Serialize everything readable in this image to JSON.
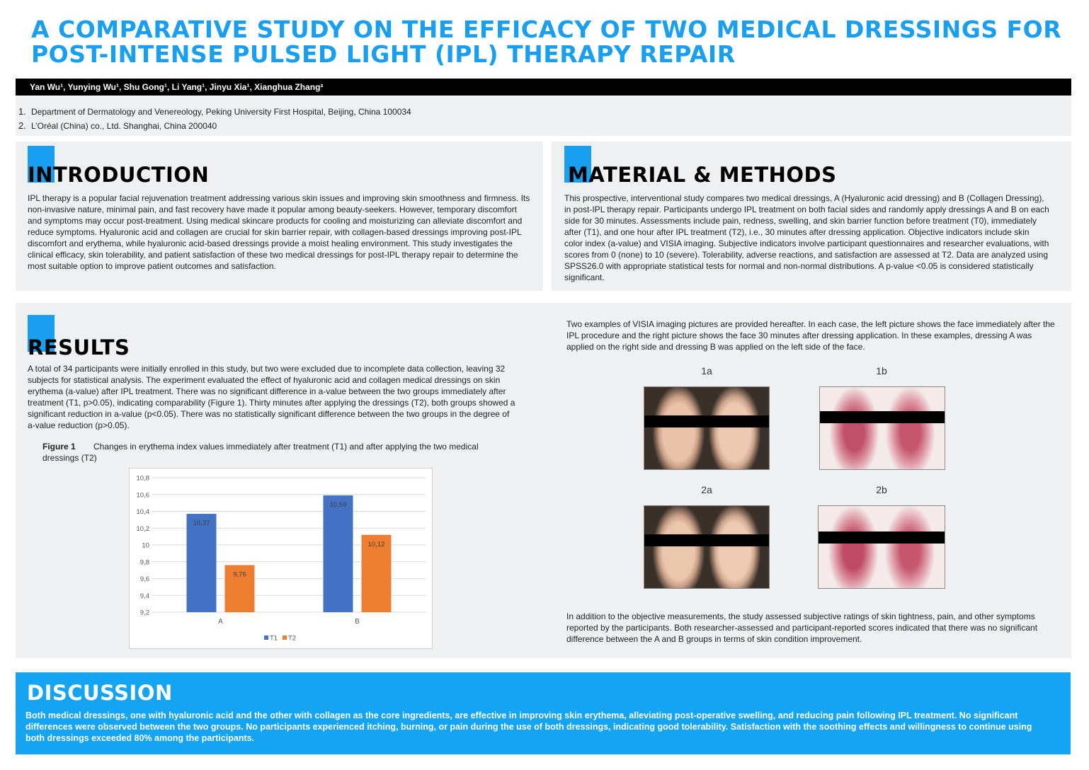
{
  "title": {
    "line1": "A COMPARATIVE STUDY ON THE EFFICACY OF TWO MEDICAL DRESSINGS FOR",
    "line2": "POST-INTENSE PULSED LIGHT (IPL) THERAPY REPAIR"
  },
  "authors": "Yan Wu¹, Yunying Wu¹, Shu Gong¹, Li Yang¹, Jinyu Xia¹, Xianghua Zhang²",
  "affiliations": [
    {
      "num": "1.",
      "text": "Department of Dermatology and Venereology, Peking University First Hospital, Beijing, China 100034"
    },
    {
      "num": "2.",
      "text": "L’Oréal (China) co., Ltd. Shanghai, China 200040"
    }
  ],
  "introduction": {
    "title": "INTRODUCTION",
    "text": "IPL therapy is a popular facial rejuvenation treatment addressing various skin issues and improving skin smoothness and firmness. Its non-invasive nature, minimal pain, and fast recovery have made it popular among beauty-seekers. However, temporary discomfort and symptoms may occur post-treatment. Using medical skincare products for cooling and moisturizing can alleviate discomfort and reduce symptoms. Hyaluronic acid and collagen are crucial for skin barrier repair, with collagen-based dressings improving post-IPL discomfort and erythema, while hyaluronic acid-based dressings provide a moist healing environment. This study investigates the clinical efficacy, skin tolerability, and patient satisfaction of these two medical dressings for post-IPL therapy repair to determine the most suitable option to improve patient outcomes and satisfaction."
  },
  "methods": {
    "title": "MATERIAL & METHODS",
    "text": "This prospective, interventional study compares two medical dressings, A (Hyaluronic acid dressing) and B (Collagen Dressing), in post-IPL therapy repair. Participants undergo IPL treatment on both facial sides and randomly apply dressings A and B on each side for 30 minutes. Assessments include pain, redness, swelling, and skin barrier function before treatment (T0), immediately after (T1), and one hour after IPL treatment (T2), i.e., 30 minutes after dressing application. Objective indicators include skin color index (a-value) and VISIA imaging. Subjective indicators involve participant questionnaires and researcher evaluations, with scores from 0 (none) to 10 (severe). Tolerability, adverse reactions, and satisfaction are assessed at T2. Data are analyzed using SPSS26.0 with appropriate statistical tests for normal and non-normal distributions. A p-value <0.05 is considered statistically significant."
  },
  "results": {
    "title": "RESULTS",
    "text": "A total of 34 participants were initially enrolled in this study, but two were excluded due to incomplete data collection, leaving 32 subjects for statistical analysis. The experiment evaluated the effect of hyaluronic acid and collagen medical dressings on skin erythema (a-value) after IPL treatment. There was no significant difference in a-value between the two groups immediately after treatment (T1, p>0.05), indicating comparability (Figure 1). Thirty minutes after applying the dressings (T2), both groups showed a significant reduction in a-value (p<0.05). There was no statistically significant difference between the two groups in the degree of a-value reduction (p>0.05).",
    "figure_label": "Figure 1",
    "figure_caption": "Changes in erythema index values immediately after treatment (T1) and after applying the two medical dressings (T2)",
    "visia_intro": "Two examples of VISIA imaging pictures are provided hereafter. In each case, the left picture shows the face immediately after the IPL procedure and the right picture shows the face 30 minutes after dressing application. In these examples, dressing A was applied on the right side and dressing B was applied on the left side of the face.",
    "image_labels": [
      "1a",
      "1b",
      "2a",
      "2b"
    ],
    "subjective_text": "In addition to the objective measurements, the study assessed subjective ratings of skin tightness, pain, and other symptoms reported by the participants. Both researcher-assessed and participant-reported scores indicated that there was no significant difference between the A and B groups in terms of skin condition improvement."
  },
  "chart_data": {
    "type": "bar",
    "categories": [
      "A",
      "B"
    ],
    "series": [
      {
        "name": "T1",
        "values": [
          10.37,
          10.59
        ],
        "labels": [
          "10,37",
          "10,59"
        ],
        "color": "#4472c4"
      },
      {
        "name": "T2",
        "values": [
          9.76,
          10.12
        ],
        "labels": [
          "9,76",
          "10,12"
        ],
        "color": "#ed7d31"
      }
    ],
    "ylim": [
      9.2,
      10.8
    ],
    "yticks": [
      {
        "value": 9.2,
        "label": "9,2"
      },
      {
        "value": 9.4,
        "label": "9,4"
      },
      {
        "value": 9.6,
        "label": "9,6"
      },
      {
        "value": 9.8,
        "label": "9,8"
      },
      {
        "value": 10.0,
        "label": "10"
      },
      {
        "value": 10.2,
        "label": "10,2"
      },
      {
        "value": 10.4,
        "label": "10,4"
      },
      {
        "value": 10.6,
        "label": "10,6"
      },
      {
        "value": 10.8,
        "label": "10,8"
      }
    ],
    "grid": true,
    "legend": "bottom-center"
  },
  "discussion": {
    "title": "DISCUSSION",
    "text": "Both medical dressings, one with hyaluronic acid and the other with collagen as the core ingredients, are effective in improving skin erythema, alleviating post-operative swelling, and reducing pain following IPL treatment. No significant differences were observed between the two groups. No participants experienced itching, burning, or pain during the use of both dressings, indicating good tolerability. Satisfaction with the soothing effects and willingness to continue using both dressings exceeded 80% among the participants."
  },
  "colors": {
    "accent": "#1a9ff0",
    "panel": "#eff0f1",
    "t1": "#4472c4",
    "t2": "#ed7d31"
  }
}
